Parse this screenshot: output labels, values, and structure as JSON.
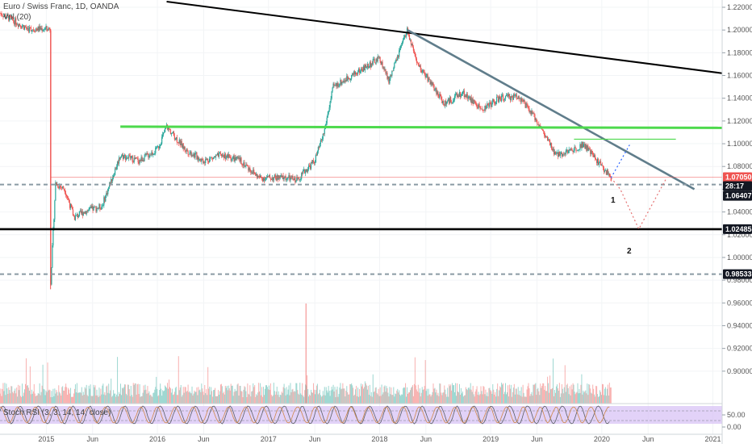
{
  "header": {
    "title": "Euro / Swiss Franc, 1D, OANDA",
    "volume_label": "Vol (20)",
    "stoch_label": "Stoch RSI (3, 3, 14, 14, close)"
  },
  "colors": {
    "up": "#26a69a",
    "down": "#ef5350",
    "trend_black": "#000000",
    "trend_gray": "#607d8b",
    "resistance_green": "#4cd94c",
    "dashed_gray": "#8a9aa4",
    "projection": "#e57373",
    "stoch_band": "#d8c3f5",
    "price_tag": "#ef5350",
    "dark_tag": "#131722"
  },
  "chart_data": {
    "type": "candlestick",
    "title": "Euro / Swiss Franc, 1D, OANDA",
    "x_axis": {
      "ticks": [
        "2015",
        "Jun",
        "2016",
        "Jun",
        "2017",
        "Jun",
        "2018",
        "Jun",
        "2019",
        "Jun",
        "2020",
        "Jun",
        "2021"
      ],
      "range": [
        "2014-08",
        "2021-02"
      ]
    },
    "y_axis": {
      "ticks": [
        "1.22000",
        "1.20000",
        "1.18000",
        "1.16000",
        "1.14000",
        "1.12000",
        "1.10000",
        "1.08000",
        "1.06000",
        "1.04000",
        "1.02000",
        "1.00000",
        "0.98000",
        "0.96000",
        "0.94000",
        "0.92000",
        "0.90000"
      ],
      "range": [
        0.88,
        1.22
      ]
    },
    "price_path": [
      [
        "2014-08",
        1.215
      ],
      [
        "2014-11",
        1.201
      ],
      [
        "2015-01-14",
        1.201
      ],
      [
        "2015-01-15",
        0.975
      ],
      [
        "2015-02",
        1.065
      ],
      [
        "2015-03",
        1.06
      ],
      [
        "2015-04",
        1.035
      ],
      [
        "2015-05",
        1.04
      ],
      [
        "2015-07",
        1.045
      ],
      [
        "2015-09",
        1.09
      ],
      [
        "2015-11",
        1.085
      ],
      [
        "2016-01",
        1.095
      ],
      [
        "2016-02",
        1.115
      ],
      [
        "2016-04",
        1.095
      ],
      [
        "2016-06",
        1.085
      ],
      [
        "2016-08",
        1.09
      ],
      [
        "2016-10",
        1.085
      ],
      [
        "2016-12",
        1.07
      ],
      [
        "2017-03",
        1.07
      ],
      [
        "2017-04",
        1.068
      ],
      [
        "2017-06",
        1.085
      ],
      [
        "2017-07",
        1.11
      ],
      [
        "2017-08",
        1.15
      ],
      [
        "2017-10",
        1.16
      ],
      [
        "2017-12",
        1.17
      ],
      [
        "2018-01",
        1.175
      ],
      [
        "2018-02",
        1.155
      ],
      [
        "2018-04",
        1.2
      ],
      [
        "2018-05",
        1.17
      ],
      [
        "2018-06",
        1.16
      ],
      [
        "2018-08",
        1.135
      ],
      [
        "2018-10",
        1.145
      ],
      [
        "2018-12",
        1.13
      ],
      [
        "2019-02",
        1.14
      ],
      [
        "2019-04",
        1.142
      ],
      [
        "2019-06",
        1.12
      ],
      [
        "2019-08",
        1.09
      ],
      [
        "2019-10",
        1.095
      ],
      [
        "2019-11",
        1.1
      ],
      [
        "2019-12",
        1.09
      ],
      [
        "2020-01",
        1.08
      ],
      [
        "2020-02",
        1.07
      ]
    ],
    "volume": {
      "panel_label": "Vol (20)"
    },
    "stochastic": {
      "panel_label": "Stoch RSI (3, 3, 14, 14, close)",
      "ticks": [
        "50.00",
        "0.00"
      ]
    },
    "price_tags": [
      {
        "label": "1.07050",
        "kind": "last_price"
      },
      {
        "label": "28:17",
        "kind": "countdown"
      },
      {
        "label": "1.06407",
        "kind": "level"
      },
      {
        "label": "1.02485",
        "kind": "level"
      },
      {
        "label": "0.98533",
        "kind": "level"
      }
    ],
    "annotations": [
      "1",
      "2"
    ],
    "drawings": [
      {
        "name": "upper-trendline",
        "from": [
          "2016-02",
          1.225
        ],
        "to": [
          "2021-02",
          1.162
        ]
      },
      {
        "name": "descending-trendline",
        "from": [
          "2018-04",
          1.2
        ],
        "to": [
          "2020-11",
          1.06
        ]
      },
      {
        "name": "resistance-green",
        "from": [
          "2015-09",
          1.115
        ],
        "to": [
          "2021-02",
          1.114
        ]
      },
      {
        "name": "support-solid",
        "level": 1.02485
      },
      {
        "name": "support-dashed",
        "level": 1.06407
      },
      {
        "name": "support-dashed",
        "level": 0.98533
      },
      {
        "name": "projection",
        "points": [
          [
            "2020-02",
            1.07
          ],
          [
            "2020-03",
            1.06
          ],
          [
            "2020-05",
            1.025
          ],
          [
            "2020-08",
            1.07
          ]
        ]
      }
    ]
  }
}
